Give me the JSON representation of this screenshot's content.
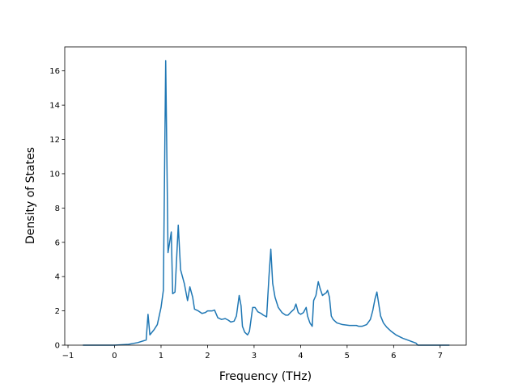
{
  "chart_data": {
    "type": "line",
    "xlabel": "Frequency (THz)",
    "ylabel": "Density of States",
    "x": [
      -0.68,
      0,
      0.3,
      0.5,
      0.68,
      0.72,
      0.76,
      0.85,
      0.92,
      1.0,
      1.05,
      1.1,
      1.15,
      1.22,
      1.25,
      1.3,
      1.37,
      1.42,
      1.5,
      1.57,
      1.62,
      1.68,
      1.72,
      1.8,
      1.88,
      1.95,
      2.0,
      2.1,
      2.15,
      2.22,
      2.3,
      2.38,
      2.45,
      2.5,
      2.57,
      2.62,
      2.68,
      2.72,
      2.75,
      2.8,
      2.86,
      2.9,
      2.97,
      3.02,
      3.08,
      3.15,
      3.2,
      3.27,
      3.32,
      3.36,
      3.4,
      3.45,
      3.52,
      3.6,
      3.68,
      3.73,
      3.8,
      3.86,
      3.9,
      3.95,
      4.0,
      4.06,
      4.12,
      4.15,
      4.2,
      4.25,
      4.28,
      4.33,
      4.38,
      4.42,
      4.47,
      4.52,
      4.55,
      4.58,
      4.62,
      4.66,
      4.7,
      4.78,
      4.9,
      5.05,
      5.2,
      5.25,
      5.32,
      5.42,
      5.5,
      5.55,
      5.6,
      5.64,
      5.68,
      5.72,
      5.78,
      5.85,
      5.95,
      6.05,
      6.2,
      6.35,
      6.48,
      6.52,
      7.2
    ],
    "series": [
      {
        "color": "#1f77b4",
        "values": [
          0,
          0,
          0.05,
          0.15,
          0.3,
          1.8,
          0.6,
          0.9,
          1.2,
          2.2,
          3.2,
          16.6,
          5.4,
          6.6,
          3.0,
          3.1,
          7.0,
          4.4,
          3.6,
          2.6,
          3.4,
          2.8,
          2.1,
          2.0,
          1.85,
          1.9,
          2.0,
          2.0,
          2.05,
          1.6,
          1.5,
          1.55,
          1.45,
          1.35,
          1.4,
          1.7,
          2.9,
          2.3,
          1.1,
          0.75,
          0.6,
          0.8,
          2.2,
          2.2,
          1.95,
          1.85,
          1.75,
          1.65,
          4.0,
          5.6,
          3.6,
          2.8,
          2.2,
          1.9,
          1.75,
          1.75,
          1.95,
          2.1,
          2.4,
          1.9,
          1.8,
          1.9,
          2.2,
          1.7,
          1.3,
          1.1,
          2.6,
          2.9,
          3.7,
          3.3,
          2.9,
          3.0,
          3.05,
          3.2,
          2.8,
          1.7,
          1.5,
          1.3,
          1.2,
          1.15,
          1.15,
          1.1,
          1.1,
          1.2,
          1.5,
          2.0,
          2.7,
          3.1,
          2.4,
          1.7,
          1.3,
          1.05,
          0.8,
          0.6,
          0.4,
          0.25,
          0.12,
          0,
          0
        ]
      }
    ],
    "xlim": [
      -1.07,
      7.56
    ],
    "ylim": [
      0,
      17.4
    ],
    "xticks": [
      {
        "value": -1,
        "label": "−1"
      },
      0,
      1,
      2,
      3,
      4,
      5,
      6,
      7
    ],
    "yticks": [
      0,
      2,
      4,
      6,
      8,
      10,
      12,
      14,
      16
    ]
  }
}
